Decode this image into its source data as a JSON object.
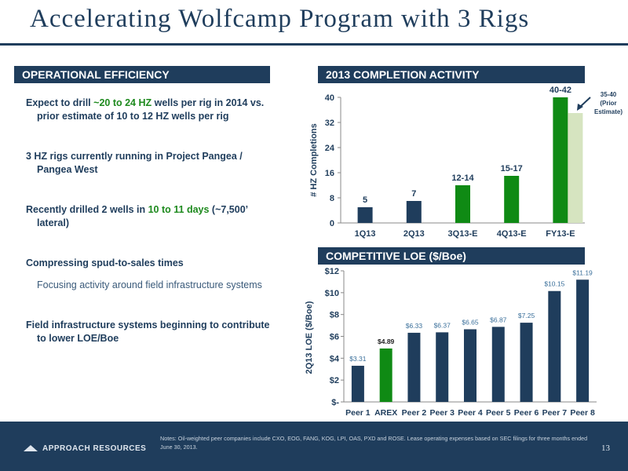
{
  "title": "Accelerating Wolfcamp Program with 3 Rigs",
  "left": {
    "header": "OPERATIONAL EFFICIENCY",
    "b1_pre": "Expect to drill ",
    "b1_green": "~20 to 24 HZ",
    "b1_post": " wells per rig in 2014 vs. prior estimate of 10 to 12 HZ wells per rig",
    "b2": "3 HZ rigs currently running in Project Pangea / Pangea West",
    "b3_pre": "Recently drilled 2 wells in ",
    "b3_green": "10 to 11 days",
    "b3_post": " (~7,500’ lateral)",
    "b4": "Compressing spud-to-sales times",
    "b4_sub": "Focusing activity around field infrastructure systems",
    "b5": "Field infrastructure systems beginning to contribute to lower LOE/Boe"
  },
  "footer": {
    "logo": "APPROACH RESOURCES",
    "notes": "Notes: Oil-weighted peer companies include CXO, EOG, FANG, KOG, LPI, OAS, PXD and ROSE.  Lease operating expenses based  on SEC filings for three months ended June 30, 2013.",
    "page": "13"
  },
  "colors": {
    "navy": "#1f3d5c",
    "green": "#0f8a14",
    "light_green": "#d6e4c0"
  },
  "chart_data": [
    {
      "type": "bar",
      "title": "2013 COMPLETION ACTIVITY",
      "ylabel": "# HZ Completions",
      "ylim": [
        0,
        40
      ],
      "yticks": [
        "0",
        "8",
        "16",
        "24",
        "32",
        "40"
      ],
      "categories": [
        "1Q13",
        "2Q13",
        "3Q13-E",
        "4Q13-E",
        "FY13-E"
      ],
      "values": [
        5,
        7,
        12,
        15,
        40
      ],
      "labels": [
        "5",
        "7",
        "12-14",
        "15-17",
        "40-42"
      ],
      "colors": [
        "#1f3d5c",
        "#1f3d5c",
        "#0f8a14",
        "#0f8a14",
        "#0f8a14"
      ],
      "prior_estimate": {
        "value": 35,
        "label_lines": [
          "35-40",
          "(Prior",
          "Estimate)"
        ]
      }
    },
    {
      "type": "bar",
      "title": "COMPETITIVE LOE ($/Boe)",
      "ylabel": "2Q13 LOE ($/Boe)",
      "ylim": [
        0,
        12
      ],
      "yticks": [
        "$-",
        "$2",
        "$4",
        "$6",
        "$8",
        "$10",
        "$12"
      ],
      "categories": [
        "Peer 1",
        "AREX",
        "Peer 2",
        "Peer 3",
        "Peer 4",
        "Peer 5",
        "Peer 6",
        "Peer 7",
        "Peer 8"
      ],
      "values": [
        3.31,
        4.89,
        6.33,
        6.37,
        6.65,
        6.87,
        7.25,
        10.15,
        11.19
      ],
      "labels": [
        "$3.31",
        "$4.89",
        "$6.33",
        "$6.37",
        "$6.65",
        "$6.87",
        "$7.25",
        "$10.15",
        "$11.19"
      ],
      "highlight_index": 1
    }
  ]
}
